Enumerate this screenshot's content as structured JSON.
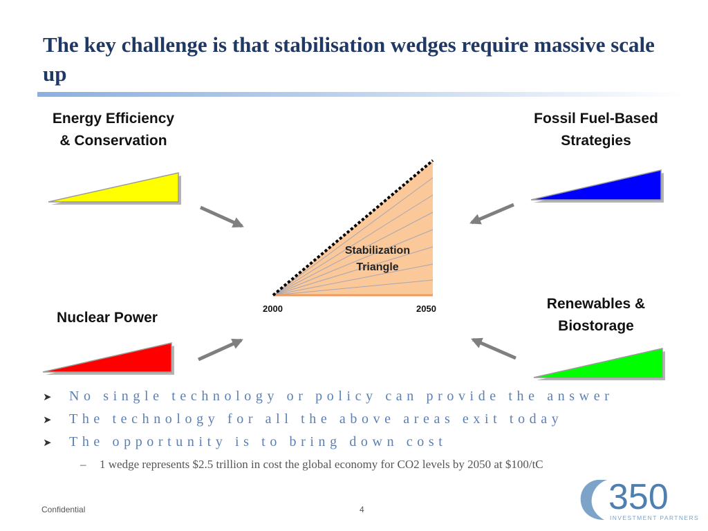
{
  "title": "The key challenge is that stabilisation wedges require massive scale up",
  "categories": {
    "efficiency": {
      "line1": "Energy Efficiency",
      "line2": "& Conservation",
      "wedge_color": "#ffff00"
    },
    "fossil": {
      "line1": "Fossil Fuel-Based",
      "line2": "Strategies",
      "wedge_color": "#0000ff"
    },
    "nuclear": {
      "line1": "Nuclear Power",
      "wedge_color": "#ff0000"
    },
    "renewables": {
      "line1": "Renewables &",
      "line2": "Biostorage",
      "wedge_color": "#00ff00"
    }
  },
  "triangle": {
    "label_line1": "Stabilization",
    "label_line2": "Triangle",
    "start_year": "2000",
    "end_year": "2050",
    "fill_color": "#fbc89a"
  },
  "bullets": [
    "No single technology or policy can provide the answer",
    "The technology for all the above areas exit today",
    "The opportunity is to bring down cost"
  ],
  "sub_bullet": "1 wedge represents $2.5 trillion in cost the global economy for CO2 levels by 2050 at $100/tC",
  "footer": {
    "left": "Confidential",
    "page_number": "4"
  },
  "logo": {
    "number": "350",
    "tagline": "INVESTMENT PARTNERS"
  }
}
